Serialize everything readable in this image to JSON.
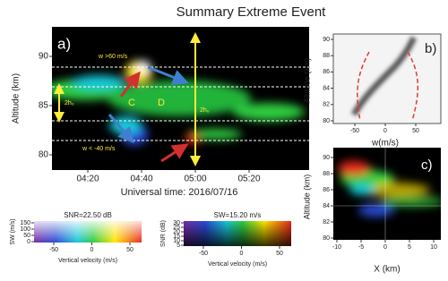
{
  "title": "Summary Extreme Event",
  "panel_a": {
    "label": "a)",
    "y_label": "Altitude (km)",
    "x_label": "Universal time: 2016/07/16",
    "yticks": [
      "90",
      "85",
      "80"
    ],
    "xticks": [
      "04:20",
      "04:40",
      "05:00",
      "05:20"
    ],
    "annotations": {
      "w_up": "w >60 m/s",
      "w_down": "w < -40 m/s",
      "c": "C",
      "d": "D",
      "h_left": "2h₀",
      "h_right": "2h₀"
    }
  },
  "panel_b": {
    "label": "b)",
    "y_label": "Altitude (km)",
    "x_label": "w(m/s)",
    "yticks": [
      "90",
      "88",
      "86",
      "84",
      "82",
      "80"
    ],
    "xticks": [
      "-50",
      "0",
      "50"
    ]
  },
  "panel_c": {
    "label": "c)",
    "y_label": "Altitude (km)",
    "x_label": "X (km)",
    "yticks": [
      "90",
      "88",
      "86",
      "84",
      "82",
      "80"
    ],
    "xticks": [
      "-10",
      "-5",
      "0",
      "5",
      "10"
    ]
  },
  "colorbar_snr": {
    "title": "SNR=22.50 dB",
    "y_label": "SW (m/s)",
    "yticks": [
      "150",
      "100",
      "50",
      "0"
    ],
    "x_label": "Vertical velocity (m/s)",
    "xticks": [
      "-50",
      "0",
      "50"
    ]
  },
  "colorbar_sw": {
    "title": "SW=15.20 m/s",
    "y_label": "SNR (dB)",
    "yticks": [
      "30",
      "25",
      "20",
      "15",
      "10",
      "5"
    ],
    "x_label": "Vertical velocity (m/s)",
    "xticks": [
      "-50",
      "0",
      "50"
    ]
  }
}
